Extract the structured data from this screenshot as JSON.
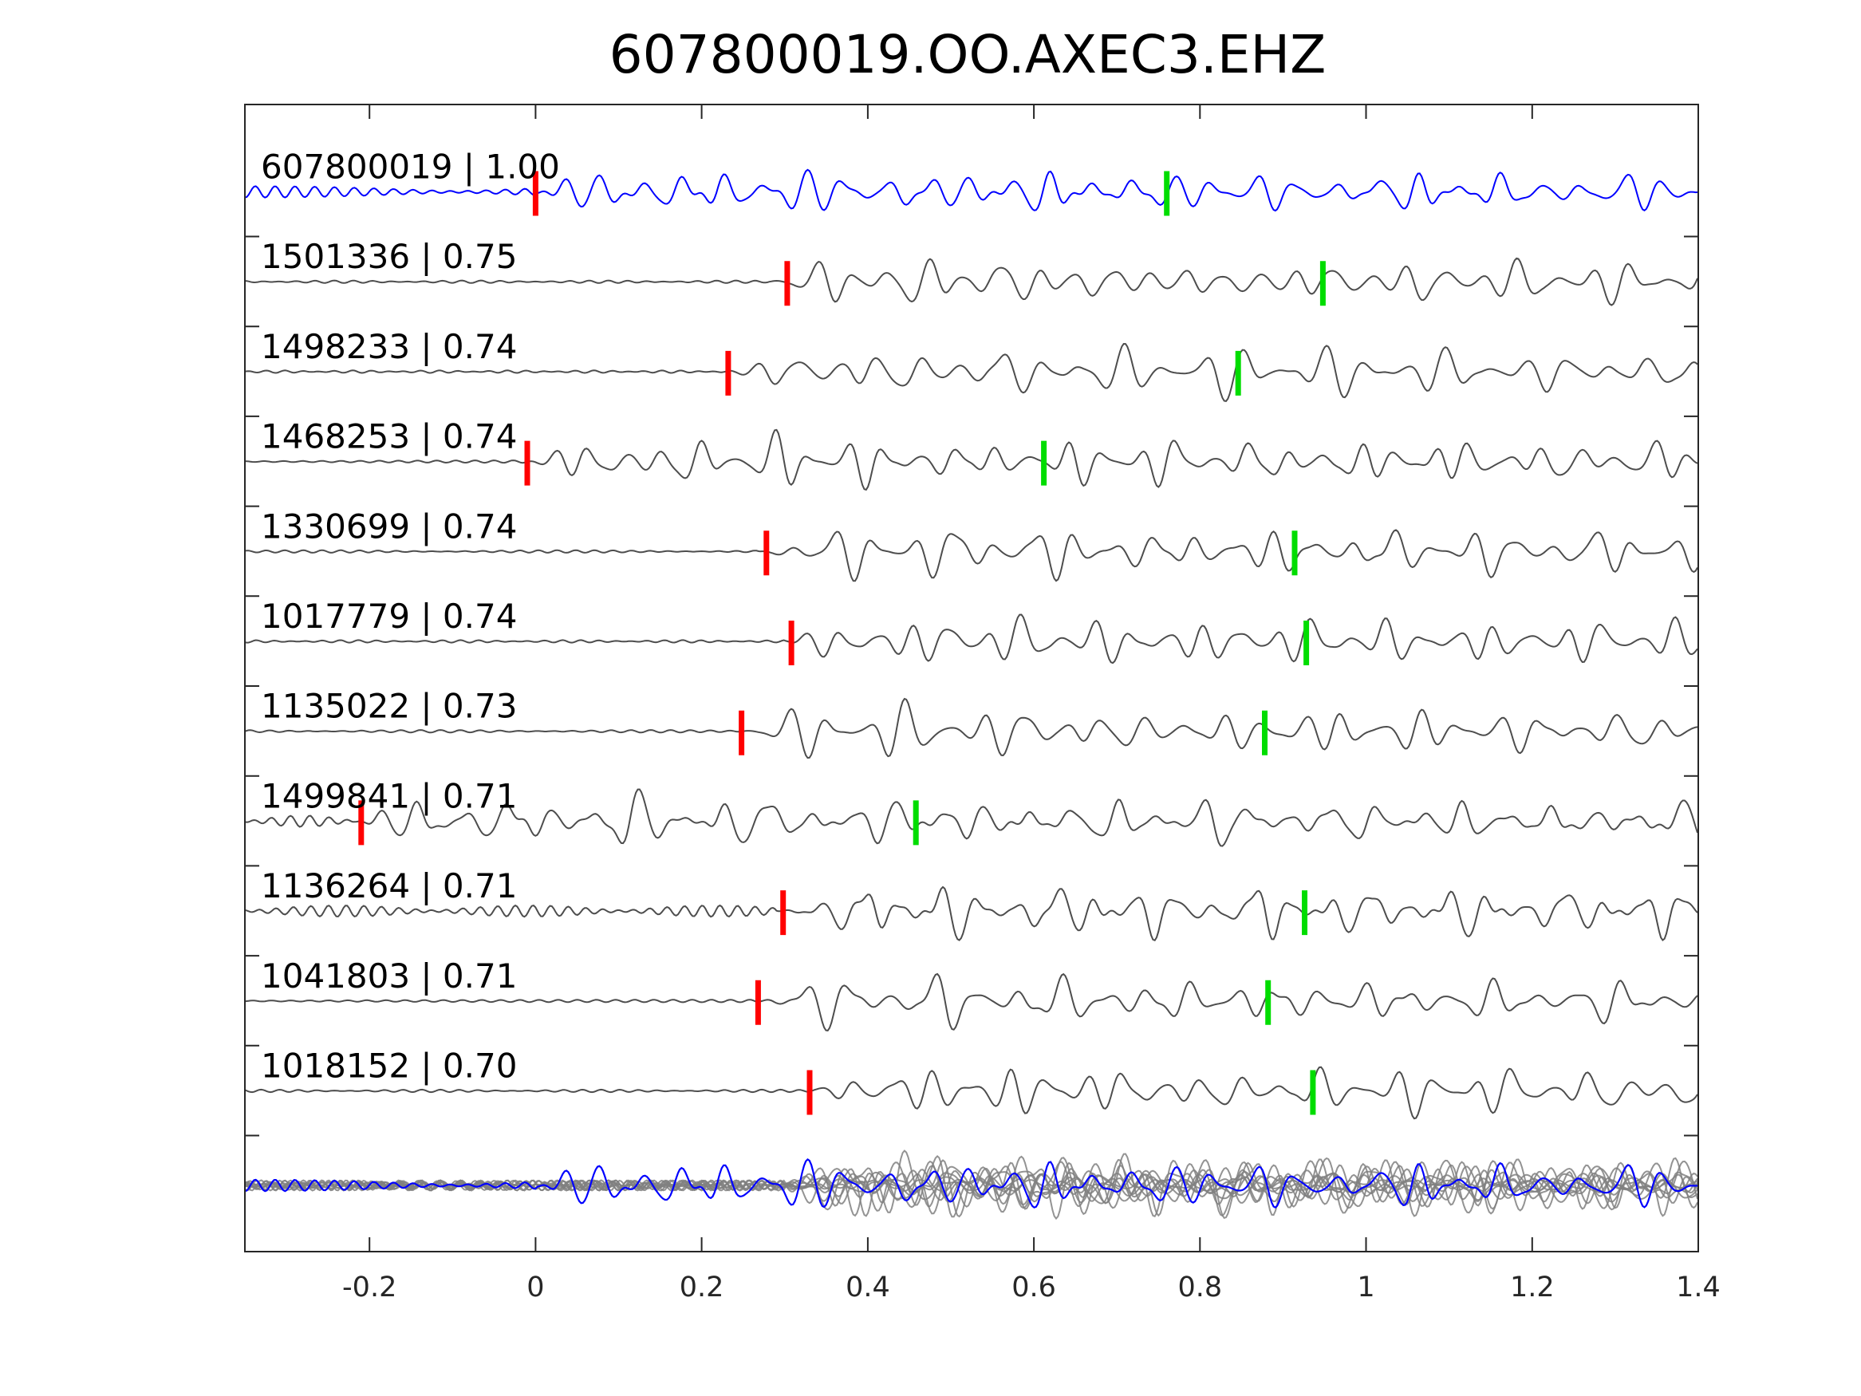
{
  "chart_data": {
    "type": "line",
    "title": "607800019.OO.AXEC3.EHZ",
    "xlabel": "",
    "ylabel": "",
    "xlim": [
      -0.35,
      1.4
    ],
    "xticks": [
      -0.2,
      0,
      0.2,
      0.4,
      0.6,
      0.8,
      1,
      1.2,
      1.4
    ],
    "xtick_labels": [
      "-0.2",
      "0",
      "0.2",
      "0.4",
      "0.6",
      "0.8",
      "1",
      "1.2",
      "1.4"
    ],
    "grid": false,
    "legend": "none",
    "colors": {
      "template": "#0000ff",
      "similar": "#4d4d4d",
      "stack_similar": "#808080",
      "p_pick": "#ff0000",
      "s_pick": "#00dd00",
      "axis": "#262626"
    },
    "traces": [
      {
        "label": "607800019 | 1.00",
        "id": "607800019",
        "cc": 1.0,
        "template": true,
        "onset": 0.0,
        "p_pick": 0.0,
        "s_pick": 0.76
      },
      {
        "label": "1501336 | 0.75",
        "id": "1501336",
        "cc": 0.75,
        "template": false,
        "onset": 0.28,
        "p_pick": 0.303,
        "s_pick": 0.948
      },
      {
        "label": "1498233 | 0.74",
        "id": "1498233",
        "cc": 0.74,
        "template": false,
        "onset": 0.24,
        "p_pick": 0.232,
        "s_pick": 0.846
      },
      {
        "label": "1468253 | 0.74",
        "id": "1468253",
        "cc": 0.74,
        "template": false,
        "onset": -0.01,
        "p_pick": -0.01,
        "s_pick": 0.612
      },
      {
        "label": "1330699 | 0.74",
        "id": "1330699",
        "cc": 0.74,
        "template": false,
        "onset": 0.27,
        "p_pick": 0.278,
        "s_pick": 0.914
      },
      {
        "label": "1017779 | 0.74",
        "id": "1017779",
        "cc": 0.74,
        "template": false,
        "onset": 0.3,
        "p_pick": 0.308,
        "s_pick": 0.928
      },
      {
        "label": "1135022 | 0.73",
        "id": "1135022",
        "cc": 0.73,
        "template": false,
        "onset": 0.25,
        "p_pick": 0.248,
        "s_pick": 0.878
      },
      {
        "label": "1499841 | 0.71",
        "id": "1499841",
        "cc": 0.71,
        "template": false,
        "onset": -0.22,
        "p_pick": -0.21,
        "s_pick": 0.458
      },
      {
        "label": "1136264 | 0.71",
        "id": "1136264",
        "cc": 0.71,
        "template": false,
        "onset": 0.29,
        "p_pick": 0.298,
        "s_pick": 0.926
      },
      {
        "label": "1041803 | 0.71",
        "id": "1041803",
        "cc": 0.71,
        "template": false,
        "onset": 0.27,
        "p_pick": 0.268,
        "s_pick": 0.882
      },
      {
        "label": "1018152 | 0.70",
        "id": "1018152",
        "cc": 0.7,
        "template": false,
        "onset": 0.33,
        "p_pick": 0.33,
        "s_pick": 0.936
      }
    ],
    "stack": {
      "aligned_onset": 0.0,
      "description": "overlay of all traces aligned; template in blue, similar events in gray"
    }
  }
}
